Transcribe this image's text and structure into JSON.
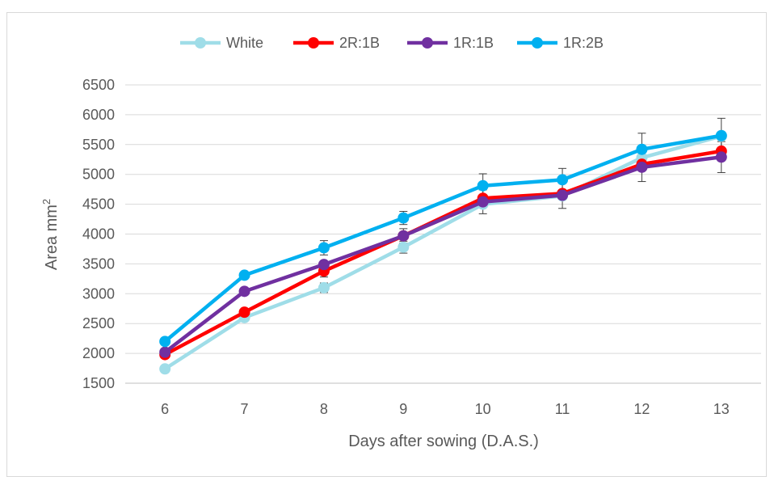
{
  "chart_data": {
    "type": "line",
    "title": "",
    "xlabel": "Days after sowing (D.A.S.)",
    "ylabel": "Area mm",
    "ylabel_superscript": "2",
    "x": [
      "6",
      "7",
      "8",
      "9",
      "10",
      "11",
      "12",
      "13"
    ],
    "ylim": [
      1500,
      6500
    ],
    "yticks": [
      "1500",
      "2000",
      "2500",
      "3000",
      "3500",
      "4000",
      "4500",
      "5000",
      "5500",
      "6000",
      "6500"
    ],
    "grid": "horizontal",
    "legend_position": "top",
    "series": [
      {
        "name": "White",
        "color": "#9fdde8",
        "values": [
          1740,
          2600,
          3100,
          3780,
          4500,
          4640,
          5280,
          5640
        ],
        "err": [
          0,
          0,
          80,
          100,
          0,
          0,
          0,
          0
        ]
      },
      {
        "name": "2R:1B",
        "color": "#ff0000",
        "values": [
          1980,
          2690,
          3380,
          3970,
          4600,
          4680,
          5170,
          5390
        ],
        "err": [
          0,
          50,
          100,
          120,
          0,
          0,
          0,
          0
        ]
      },
      {
        "name": "1R:1B",
        "color": "#7030a0",
        "values": [
          2020,
          3040,
          3490,
          3970,
          4540,
          4650,
          5120,
          5290
        ],
        "err": [
          0,
          0,
          0,
          0,
          200,
          220,
          240,
          260
        ]
      },
      {
        "name": "1R:2B",
        "color": "#00b0f0",
        "values": [
          2200,
          3310,
          3770,
          4270,
          4810,
          4910,
          5420,
          5650
        ],
        "err": [
          0,
          0,
          120,
          110,
          200,
          190,
          270,
          290
        ]
      }
    ]
  }
}
